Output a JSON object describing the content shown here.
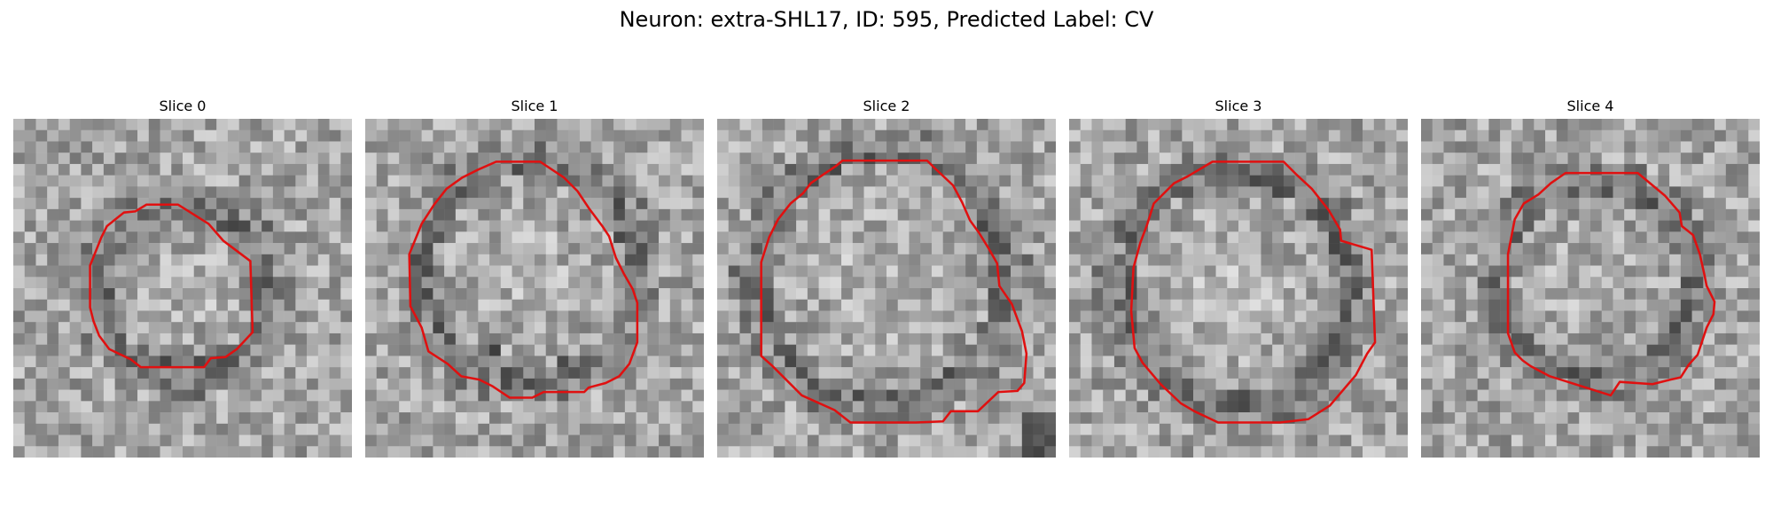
{
  "title": "Neuron: extra-SHL17, ID: 595, Predicted Label: CV",
  "contour_color": "#e01010",
  "panels": [
    {
      "label": "Slice 0"
    },
    {
      "label": "Slice 1"
    },
    {
      "label": "Slice 2"
    },
    {
      "label": "Slice 3"
    },
    {
      "label": "Slice 4"
    }
  ]
}
